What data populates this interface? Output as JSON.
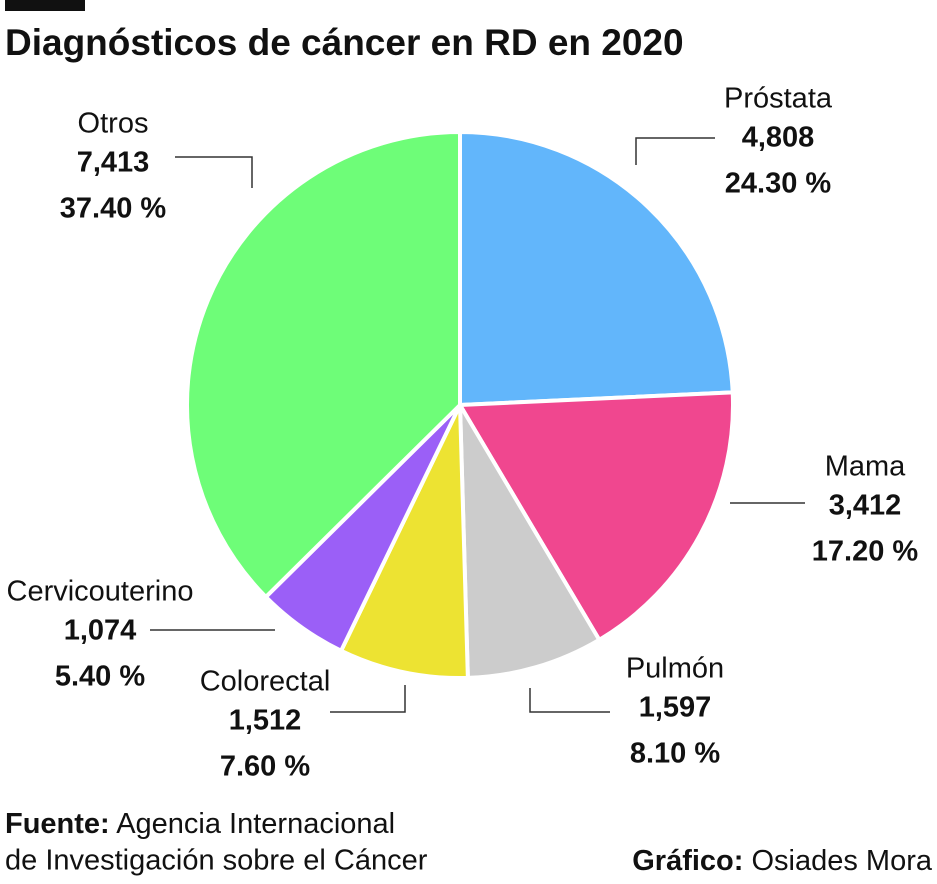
{
  "chart_data": {
    "type": "pie",
    "title": "Diagnósticos de cáncer en RD en 2020",
    "categories": [
      "Próstata",
      "Mama",
      "Pulmón",
      "Colorectal",
      "Cervicouterino",
      "Otros"
    ],
    "values": [
      4808,
      3412,
      1597,
      1512,
      1074,
      7413
    ],
    "value_labels": [
      "4,808",
      "3,412",
      "1,597",
      "1,512",
      "1,074",
      "7,413"
    ],
    "percentages": [
      24.3,
      17.2,
      8.1,
      7.6,
      5.4,
      37.4
    ],
    "percentage_labels": [
      "24.30 %",
      "17.20 %",
      "8.10 %",
      "7.60 %",
      "5.40 %",
      "37.40 %"
    ],
    "colors": [
      "#62b6fb",
      "#f0478f",
      "#cccccc",
      "#ede332",
      "#9b5ff7",
      "#6efd78"
    ],
    "source_label": "Fuente:",
    "source_lines": [
      "Agencia Internacional",
      "de Investigación sobre el Cáncer"
    ],
    "credit_label": "Gráfico:",
    "credit": "Osiades Mora"
  }
}
